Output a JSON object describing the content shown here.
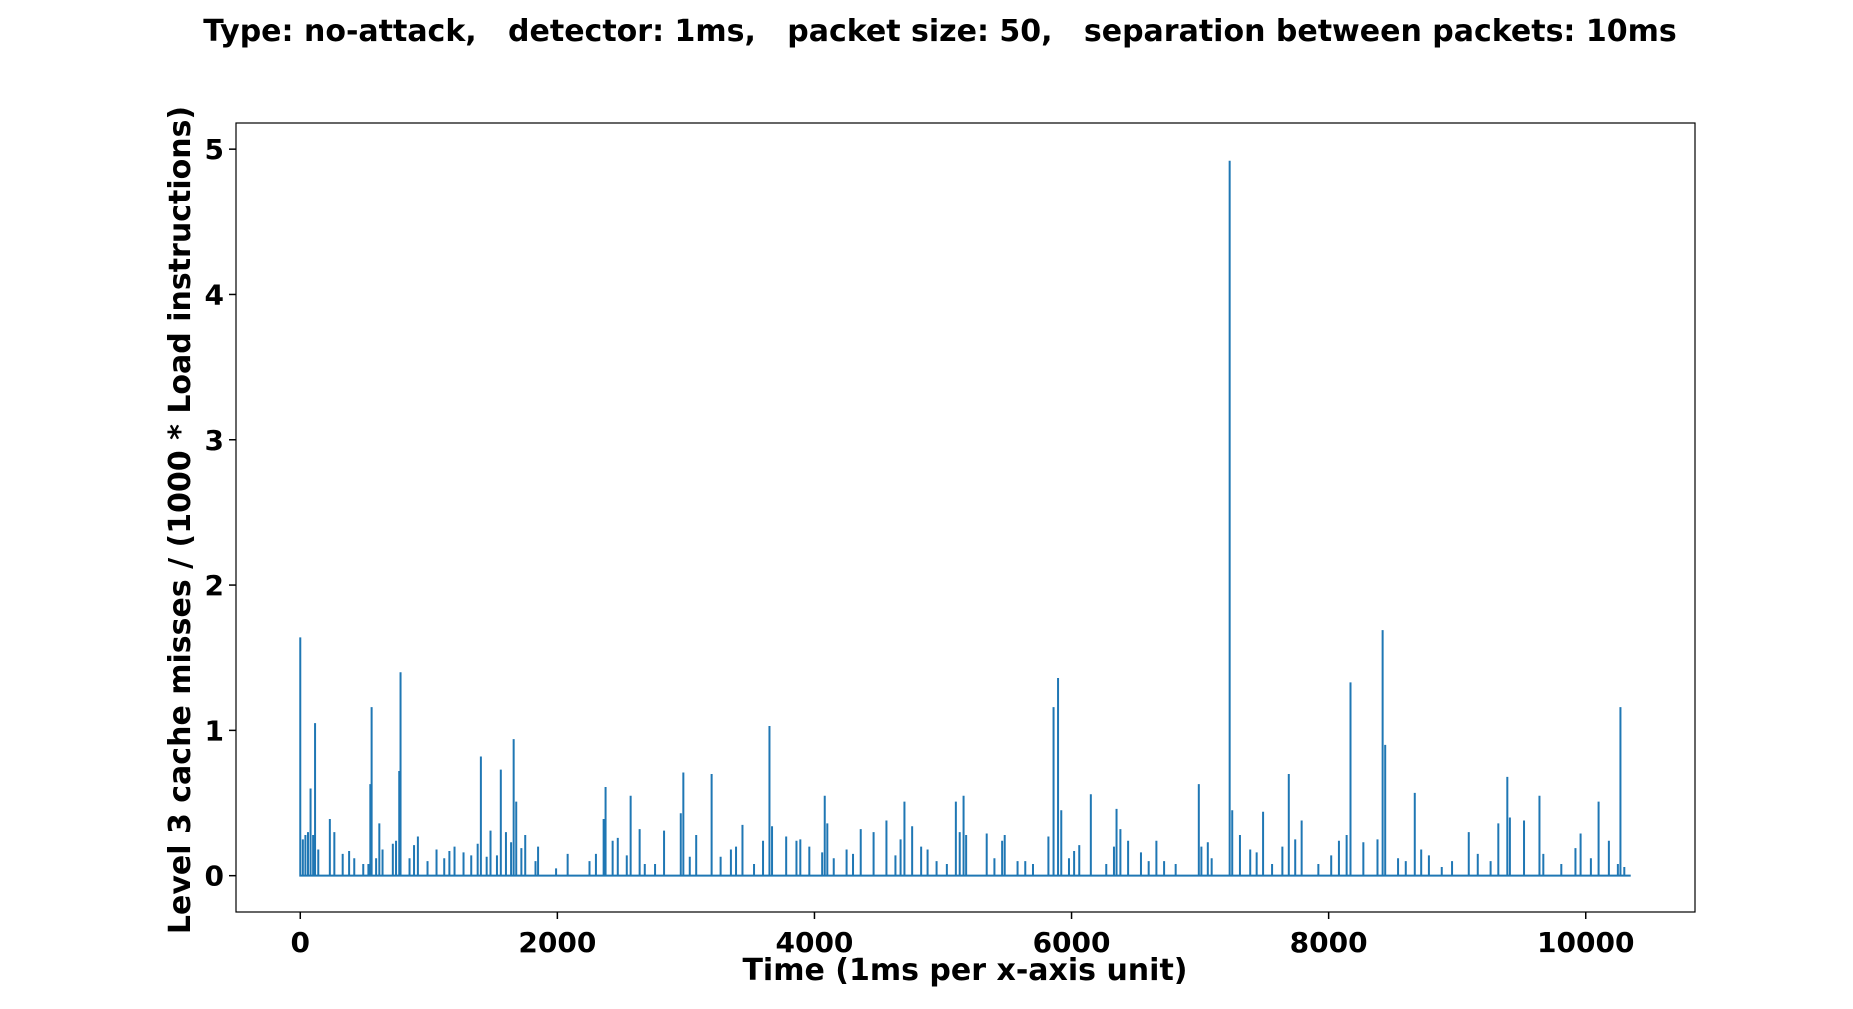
{
  "chart_data": {
    "type": "line",
    "title": "Type: no-attack,   detector: 1ms,   packet size: 50,   separation between packets: 10ms",
    "xlabel": "Time (1ms per x-axis unit)",
    "ylabel": "Level 3 cache misses / (1000 * Load instructions)",
    "xlim": [
      -500,
      10850
    ],
    "ylim": [
      -0.25,
      5.18
    ],
    "xticks": [
      0,
      2000,
      4000,
      6000,
      8000,
      10000
    ],
    "yticks": [
      0,
      1,
      2,
      3,
      4,
      5
    ],
    "xtick_labels": [
      "0",
      "2000",
      "4000",
      "6000",
      "8000",
      "10000"
    ],
    "ytick_labels": [
      "0",
      "1",
      "2",
      "3",
      "4",
      "5"
    ],
    "grid": false,
    "series_color": "#1f77b4",
    "baseline": 0.0,
    "x_range": [
      0,
      10350
    ],
    "spikes": [
      [
        0,
        1.64
      ],
      [
        20,
        0.25
      ],
      [
        40,
        0.28
      ],
      [
        60,
        0.3
      ],
      [
        80,
        0.6
      ],
      [
        100,
        0.28
      ],
      [
        115,
        1.05
      ],
      [
        140,
        0.18
      ],
      [
        230,
        0.39
      ],
      [
        265,
        0.3
      ],
      [
        330,
        0.15
      ],
      [
        380,
        0.17
      ],
      [
        420,
        0.12
      ],
      [
        490,
        0.08
      ],
      [
        530,
        0.08
      ],
      [
        545,
        0.63
      ],
      [
        555,
        1.16
      ],
      [
        590,
        0.12
      ],
      [
        615,
        0.36
      ],
      [
        640,
        0.18
      ],
      [
        720,
        0.22
      ],
      [
        745,
        0.24
      ],
      [
        770,
        0.72
      ],
      [
        780,
        1.4
      ],
      [
        850,
        0.12
      ],
      [
        885,
        0.21
      ],
      [
        915,
        0.27
      ],
      [
        990,
        0.1
      ],
      [
        1060,
        0.18
      ],
      [
        1120,
        0.12
      ],
      [
        1160,
        0.17
      ],
      [
        1200,
        0.2
      ],
      [
        1270,
        0.16
      ],
      [
        1330,
        0.14
      ],
      [
        1380,
        0.22
      ],
      [
        1405,
        0.82
      ],
      [
        1450,
        0.13
      ],
      [
        1480,
        0.31
      ],
      [
        1530,
        0.14
      ],
      [
        1560,
        0.73
      ],
      [
        1600,
        0.3
      ],
      [
        1640,
        0.23
      ],
      [
        1660,
        0.94
      ],
      [
        1680,
        0.51
      ],
      [
        1720,
        0.19
      ],
      [
        1750,
        0.28
      ],
      [
        1830,
        0.1
      ],
      [
        1850,
        0.2
      ],
      [
        1990,
        0.05
      ],
      [
        2080,
        0.15
      ],
      [
        2250,
        0.1
      ],
      [
        2300,
        0.15
      ],
      [
        2360,
        0.39
      ],
      [
        2375,
        0.61
      ],
      [
        2430,
        0.24
      ],
      [
        2470,
        0.26
      ],
      [
        2540,
        0.14
      ],
      [
        2570,
        0.55
      ],
      [
        2640,
        0.32
      ],
      [
        2680,
        0.08
      ],
      [
        2760,
        0.08
      ],
      [
        2830,
        0.31
      ],
      [
        2960,
        0.43
      ],
      [
        2980,
        0.71
      ],
      [
        3030,
        0.13
      ],
      [
        3080,
        0.28
      ],
      [
        3200,
        0.7
      ],
      [
        3270,
        0.13
      ],
      [
        3350,
        0.18
      ],
      [
        3390,
        0.2
      ],
      [
        3440,
        0.35
      ],
      [
        3530,
        0.08
      ],
      [
        3600,
        0.24
      ],
      [
        3650,
        1.03
      ],
      [
        3670,
        0.34
      ],
      [
        3780,
        0.27
      ],
      [
        3860,
        0.24
      ],
      [
        3890,
        0.25
      ],
      [
        3960,
        0.2
      ],
      [
        4060,
        0.16
      ],
      [
        4080,
        0.55
      ],
      [
        4100,
        0.36
      ],
      [
        4150,
        0.12
      ],
      [
        4250,
        0.18
      ],
      [
        4300,
        0.15
      ],
      [
        4360,
        0.32
      ],
      [
        4460,
        0.3
      ],
      [
        4560,
        0.38
      ],
      [
        4630,
        0.14
      ],
      [
        4670,
        0.25
      ],
      [
        4700,
        0.51
      ],
      [
        4760,
        0.34
      ],
      [
        4830,
        0.2
      ],
      [
        4880,
        0.18
      ],
      [
        4950,
        0.1
      ],
      [
        5030,
        0.08
      ],
      [
        5100,
        0.51
      ],
      [
        5130,
        0.3
      ],
      [
        5160,
        0.55
      ],
      [
        5180,
        0.28
      ],
      [
        5340,
        0.29
      ],
      [
        5400,
        0.12
      ],
      [
        5460,
        0.24
      ],
      [
        5480,
        0.28
      ],
      [
        5580,
        0.1
      ],
      [
        5640,
        0.1
      ],
      [
        5700,
        0.08
      ],
      [
        5820,
        0.27
      ],
      [
        5860,
        1.16
      ],
      [
        5895,
        1.36
      ],
      [
        5920,
        0.45
      ],
      [
        5980,
        0.12
      ],
      [
        6020,
        0.17
      ],
      [
        6060,
        0.21
      ],
      [
        6150,
        0.56
      ],
      [
        6270,
        0.08
      ],
      [
        6330,
        0.2
      ],
      [
        6350,
        0.46
      ],
      [
        6380,
        0.32
      ],
      [
        6440,
        0.24
      ],
      [
        6540,
        0.16
      ],
      [
        6600,
        0.1
      ],
      [
        6660,
        0.24
      ],
      [
        6720,
        0.1
      ],
      [
        6810,
        0.08
      ],
      [
        6990,
        0.63
      ],
      [
        7010,
        0.2
      ],
      [
        7060,
        0.23
      ],
      [
        7090,
        0.12
      ],
      [
        7230,
        4.92
      ],
      [
        7250,
        0.45
      ],
      [
        7310,
        0.28
      ],
      [
        7390,
        0.18
      ],
      [
        7440,
        0.16
      ],
      [
        7490,
        0.44
      ],
      [
        7560,
        0.08
      ],
      [
        7640,
        0.2
      ],
      [
        7690,
        0.7
      ],
      [
        7740,
        0.25
      ],
      [
        7790,
        0.38
      ],
      [
        7920,
        0.08
      ],
      [
        8020,
        0.14
      ],
      [
        8080,
        0.24
      ],
      [
        8140,
        0.28
      ],
      [
        8170,
        1.33
      ],
      [
        8270,
        0.23
      ],
      [
        8380,
        0.25
      ],
      [
        8420,
        1.69
      ],
      [
        8440,
        0.9
      ],
      [
        8540,
        0.12
      ],
      [
        8600,
        0.1
      ],
      [
        8670,
        0.57
      ],
      [
        8720,
        0.18
      ],
      [
        8780,
        0.14
      ],
      [
        8880,
        0.06
      ],
      [
        8960,
        0.1
      ],
      [
        9090,
        0.3
      ],
      [
        9160,
        0.15
      ],
      [
        9260,
        0.1
      ],
      [
        9320,
        0.36
      ],
      [
        9390,
        0.68
      ],
      [
        9410,
        0.4
      ],
      [
        9520,
        0.38
      ],
      [
        9640,
        0.55
      ],
      [
        9670,
        0.15
      ],
      [
        9810,
        0.08
      ],
      [
        9920,
        0.19
      ],
      [
        9960,
        0.29
      ],
      [
        10040,
        0.12
      ],
      [
        10100,
        0.51
      ],
      [
        10180,
        0.24
      ],
      [
        10250,
        0.08
      ],
      [
        10270,
        1.16
      ],
      [
        10300,
        0.06
      ]
    ]
  }
}
